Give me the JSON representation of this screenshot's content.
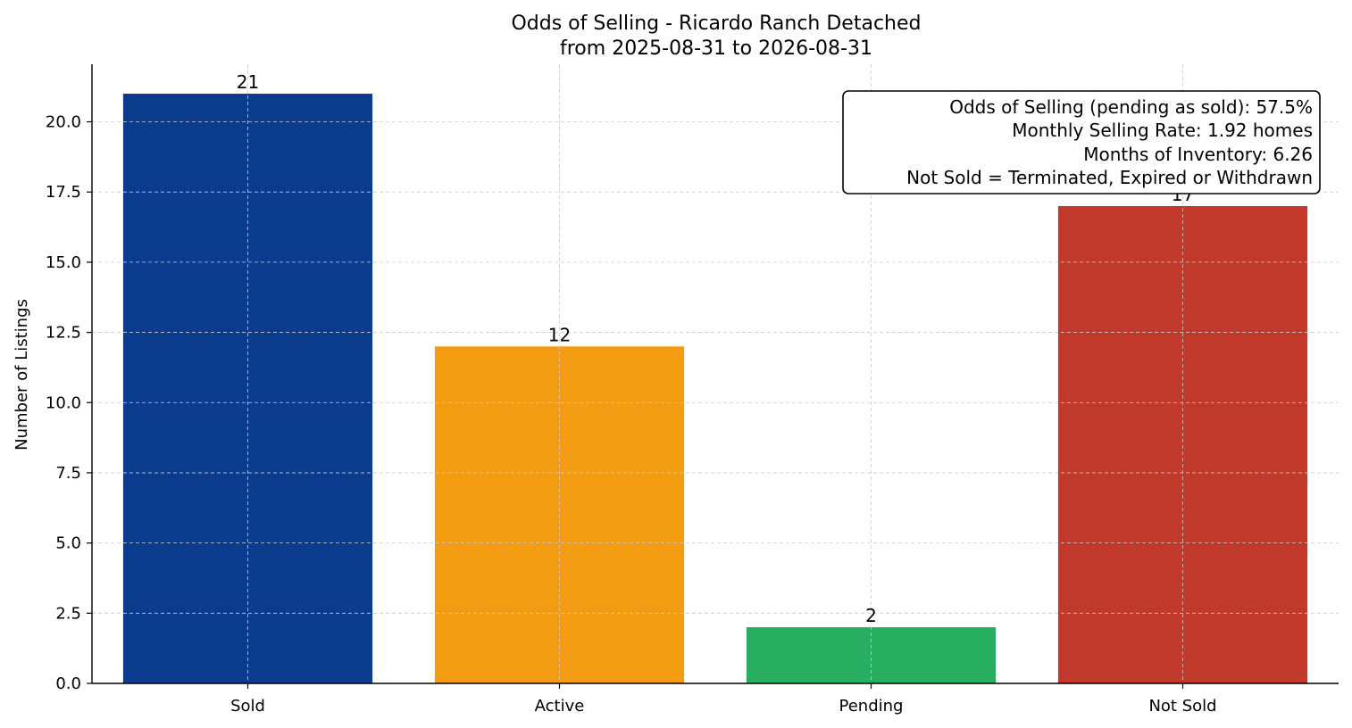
{
  "chart_data": {
    "type": "bar",
    "title": "Odds of Selling - Ricardo Ranch Detached",
    "subtitle": "from 2025-08-31 to 2026-08-31",
    "xlabel": "",
    "ylabel": "Number of Listings",
    "categories": [
      "Sold",
      "Active",
      "Pending",
      "Not Sold"
    ],
    "values": [
      21,
      12,
      2,
      17
    ],
    "data_labels": [
      "21",
      "12",
      "2",
      "17"
    ],
    "colors": [
      "#0b3b8c",
      "#f39c12",
      "#27ae60",
      "#c0392b"
    ],
    "ylim": [
      0,
      22.05
    ],
    "yticks": [
      0.0,
      2.5,
      5.0,
      7.5,
      10.0,
      12.5,
      15.0,
      17.5,
      20.0
    ],
    "ytick_labels": [
      "0.0",
      "2.5",
      "5.0",
      "7.5",
      "10.0",
      "12.5",
      "15.0",
      "17.5",
      "20.0"
    ],
    "grid": true,
    "annotation": {
      "placement": "top-right",
      "lines": [
        "Odds of Selling (pending as sold): 57.5%",
        "Monthly Selling Rate: 1.92 homes",
        "Months of Inventory: 6.26",
        "Not Sold = Terminated, Expired or Withdrawn"
      ]
    }
  }
}
